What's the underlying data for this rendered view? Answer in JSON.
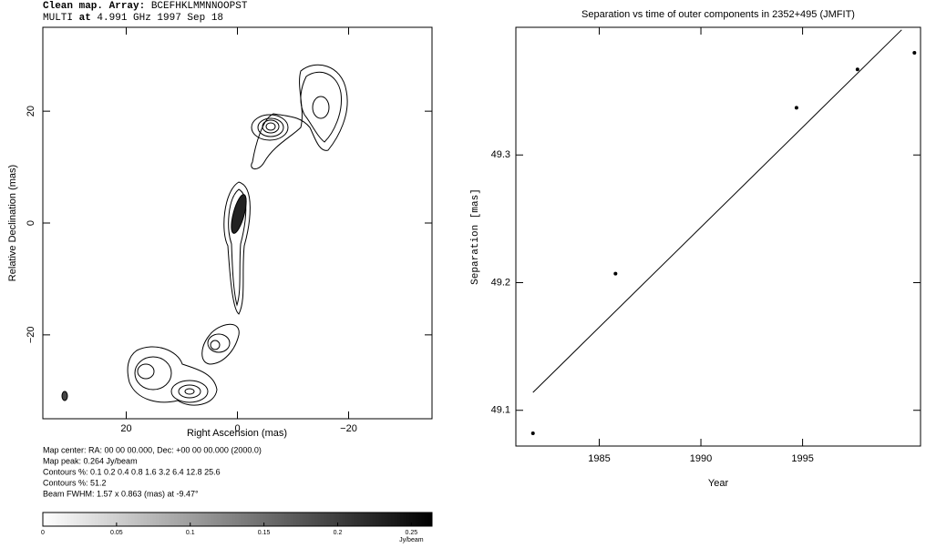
{
  "chart_data": [
    {
      "type": "contour",
      "title": [
        [
          {
            "text": "Clean map.  Array:",
            "bold": true
          },
          {
            "text": " BCEFHKLMMNNOOPST"
          }
        ],
        [
          {
            "text": "MULTI "
          },
          {
            "text": "at",
            "bold": true
          },
          {
            "text": " 4.991 GHz 1997 Sep 18"
          }
        ]
      ],
      "x_label": "Right Ascension  (mas)",
      "y_label": "Relative Declination  (mas)",
      "xlim": [
        35,
        -35
      ],
      "ylim": [
        -35,
        35
      ],
      "xticks": [
        20,
        0,
        {
          "value": -20,
          "label": "−20"
        }
      ],
      "yticks": [
        {
          "value": -20,
          "label": "−20"
        },
        0,
        20
      ],
      "info": [
        "Map center:  RA: 00 00 00.000,  Dec: +00 00 00.000 (2000.0)",
        "Map peak: 0.264 Jy/beam",
        "Contours %: 0.1 0.2 0.4 0.8 1.6 3.2 6.4 12.8 25.6",
        "Contours %: 51.2",
        "Beam FWHM: 1.57 x 0.863 (mas) at -9.47°"
      ],
      "colorbar": {
        "range": [
          0,
          0.264
        ],
        "ticks": [
          0,
          0.05,
          0.1,
          0.15,
          0.2,
          0.25
        ],
        "unit": "Jy/beam"
      }
    },
    {
      "type": "scatter",
      "title": "Separation vs time of outer components in 2352+495 (JMFIT)",
      "x_label": "Year",
      "y_label": "Separation  [mas]",
      "x": [
        1981.74,
        1985.8,
        1994.7,
        1997.7,
        2000.5
      ],
      "values": [
        49.082,
        49.207,
        49.337,
        49.367,
        49.38
      ],
      "fit": {
        "x": [
          1981.74,
          1999.87
        ],
        "values": [
          49.114,
          49.398
        ]
      },
      "xlim": [
        1980.9,
        2000.8
      ],
      "ylim": [
        49.072,
        49.4
      ],
      "xticks": [
        1985,
        1990,
        1995
      ],
      "yticks": [
        49.1,
        49.2,
        49.3
      ]
    }
  ]
}
